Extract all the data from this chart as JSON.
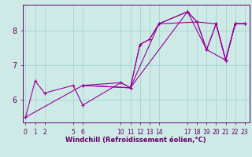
{
  "xlabel": "Windchill (Refroidissement éolien,°C)",
  "bg_color": "#ceeae6",
  "line_color": "#990099",
  "grid_color": "#aad8d4",
  "axis_color": "#660066",
  "tick_color": "#660066",
  "xtick_vals": [
    0,
    1,
    2,
    5,
    6,
    10,
    11,
    12,
    13,
    14,
    17,
    18,
    19,
    20,
    21,
    22,
    23
  ],
  "yticks": [
    6,
    7,
    8
  ],
  "xlim": [
    -0.3,
    23.5
  ],
  "ylim": [
    5.35,
    8.75
  ],
  "series": [
    {
      "x": [
        0,
        1,
        2,
        5,
        6,
        10,
        11,
        12,
        13,
        14,
        17,
        18,
        19,
        20,
        21,
        22,
        23
      ],
      "y": [
        5.5,
        6.55,
        6.2,
        6.42,
        5.85,
        6.5,
        6.35,
        7.6,
        7.75,
        8.2,
        8.55,
        8.25,
        7.45,
        8.2,
        7.15,
        8.2,
        8.2
      ]
    },
    {
      "x": [
        0,
        6,
        10,
        11,
        12,
        13,
        14,
        17,
        18,
        19,
        20,
        21,
        22,
        23
      ],
      "y": [
        5.5,
        6.42,
        6.5,
        6.35,
        7.6,
        7.75,
        8.2,
        8.55,
        8.25,
        7.45,
        8.2,
        7.15,
        8.2,
        8.2
      ]
    },
    {
      "x": [
        6,
        11,
        17,
        19,
        21,
        22,
        23
      ],
      "y": [
        6.42,
        6.35,
        8.55,
        7.45,
        7.15,
        8.2,
        8.2
      ]
    },
    {
      "x": [
        6,
        11,
        14,
        18,
        20,
        21,
        22,
        23
      ],
      "y": [
        6.42,
        6.35,
        8.2,
        8.25,
        8.2,
        7.15,
        8.2,
        8.2
      ]
    }
  ]
}
